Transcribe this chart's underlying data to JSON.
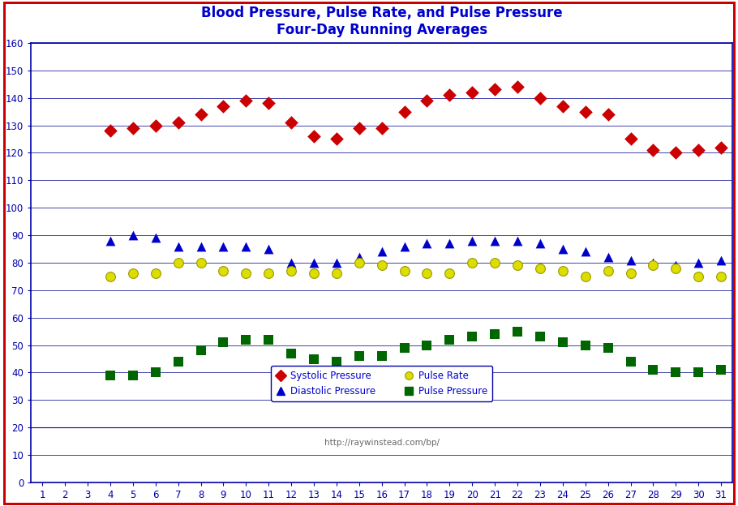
{
  "title_line1": "Blood Pressure, Pulse Rate, and Pulse Pressure",
  "title_line2": "Four-Day Running Averages",
  "title_color": "#0000CC",
  "background_color": "#FFFFFF",
  "chart_bg_color": "#FFFFFF",
  "grid_color": "#4444AA",
  "axis_color": "#0000AA",
  "tick_color": "#0000AA",
  "border_color": "#CC0000",
  "url_text": "http://raywinstead.com/bp/",
  "url_color": "#666666",
  "x_values": [
    1,
    2,
    3,
    4,
    5,
    6,
    7,
    8,
    9,
    10,
    11,
    12,
    13,
    14,
    15,
    16,
    17,
    18,
    19,
    20,
    21,
    22,
    23,
    24,
    25,
    26,
    27,
    28,
    29,
    30,
    31
  ],
  "systolic": [
    null,
    null,
    null,
    128,
    129,
    130,
    131,
    134,
    137,
    139,
    138,
    131,
    126,
    125,
    129,
    129,
    135,
    139,
    141,
    142,
    143,
    144,
    140,
    137,
    135,
    134,
    125,
    121,
    120,
    121,
    122
  ],
  "diastolic": [
    null,
    null,
    null,
    88,
    90,
    89,
    86,
    86,
    86,
    86,
    85,
    80,
    80,
    80,
    82,
    84,
    86,
    87,
    87,
    88,
    88,
    88,
    87,
    85,
    84,
    82,
    81,
    80,
    79,
    80,
    81
  ],
  "pulse_rate": [
    null,
    null,
    null,
    75,
    76,
    76,
    80,
    80,
    77,
    76,
    76,
    77,
    76,
    76,
    80,
    79,
    77,
    76,
    76,
    80,
    80,
    79,
    78,
    77,
    75,
    77,
    76,
    79,
    78,
    75,
    75
  ],
  "pulse_pressure": [
    null,
    null,
    null,
    39,
    39,
    40,
    44,
    48,
    51,
    52,
    52,
    47,
    45,
    44,
    46,
    46,
    49,
    50,
    52,
    53,
    54,
    55,
    53,
    51,
    50,
    49,
    44,
    41,
    40,
    40,
    41
  ],
  "systolic_color": "#CC0000",
  "diastolic_color": "#0000CC",
  "pulse_rate_color": "#DDDD00",
  "pulse_pressure_color": "#006600",
  "ylim": [
    0,
    160
  ],
  "yticks": [
    0,
    10,
    20,
    30,
    40,
    50,
    60,
    70,
    80,
    90,
    100,
    110,
    120,
    130,
    140,
    150,
    160
  ],
  "xlim": [
    0.5,
    31.5
  ],
  "xticks": [
    1,
    2,
    3,
    4,
    5,
    6,
    7,
    8,
    9,
    10,
    11,
    12,
    13,
    14,
    15,
    16,
    17,
    18,
    19,
    20,
    21,
    22,
    23,
    24,
    25,
    26,
    27,
    28,
    29,
    30,
    31
  ],
  "legend_labels": [
    "Systolic Pressure",
    "Diastolic Pressure",
    "Pulse Rate",
    "Pulse Pressure"
  ]
}
